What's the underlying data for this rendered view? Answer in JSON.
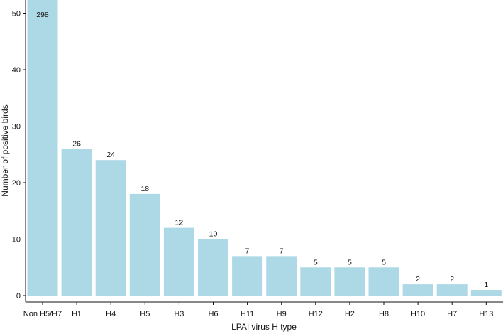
{
  "chart_data": {
    "type": "bar",
    "categories": [
      "Non H5/H7",
      "H1",
      "H4",
      "H5",
      "H3",
      "H6",
      "H11",
      "H9",
      "H12",
      "H2",
      "H8",
      "H10",
      "H7",
      "H13"
    ],
    "values": [
      298,
      26,
      24,
      18,
      12,
      10,
      7,
      7,
      5,
      5,
      5,
      2,
      2,
      1
    ],
    "data_labels": [
      "298",
      "26",
      "24",
      "18",
      "12",
      "10",
      "7",
      "7",
      "5",
      "5",
      "5",
      "2",
      "2",
      "1"
    ],
    "xlabel": "LPAI virus H type",
    "ylabel": "Number of positive birds",
    "ylim": [
      0,
      52
    ],
    "yticks": [
      0,
      10,
      20,
      30,
      40,
      50
    ],
    "bar_color": "#add8e6",
    "grid": false,
    "note": "first bar is truncated at the top of the axis"
  }
}
